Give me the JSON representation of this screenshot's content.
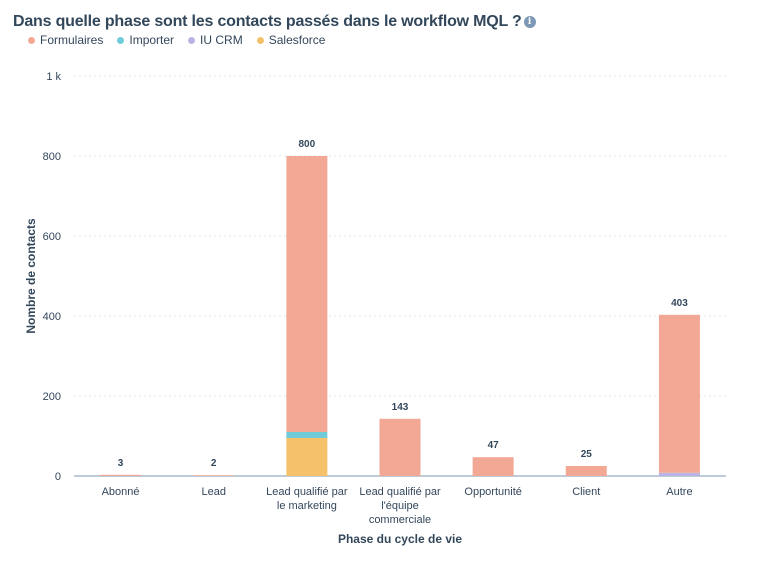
{
  "title": "Dans quelle phase sont les contacts passés dans le workflow MQL ?",
  "info_icon": "info-icon",
  "chart_data": {
    "type": "bar",
    "stacked": true,
    "categories": [
      [
        "Abonné"
      ],
      [
        "Lead"
      ],
      [
        "Lead qualifié par",
        "le marketing"
      ],
      [
        "Lead qualifié par",
        "l'équipe",
        "commerciale"
      ],
      [
        "Opportunité"
      ],
      [
        "Client"
      ],
      [
        "Autre"
      ]
    ],
    "series": [
      {
        "name": "Salesforce",
        "color": "#f5c26b",
        "values": [
          0,
          0,
          95,
          0,
          0,
          0,
          0
        ]
      },
      {
        "name": "IU CRM",
        "color": "#b9b4e4",
        "values": [
          0,
          0,
          0,
          0,
          0,
          0,
          8
        ]
      },
      {
        "name": "Importer",
        "color": "#6fcbd8",
        "values": [
          0,
          0,
          15,
          0,
          0,
          0,
          0
        ]
      },
      {
        "name": "Formulaires",
        "color": "#f2a894",
        "values": [
          3,
          2,
          690,
          143,
          47,
          25,
          395
        ]
      }
    ],
    "totals": [
      "3",
      "2",
      "800",
      "143",
      "47",
      "25",
      "403"
    ],
    "legend_order": [
      "Formulaires",
      "Importer",
      "IU CRM",
      "Salesforce"
    ],
    "legend_colors": {
      "Formulaires": "#f2a894",
      "Importer": "#6fcbd8",
      "IU CRM": "#b9b4e4",
      "Salesforce": "#f5c26b"
    },
    "xlabel": "Phase du cycle de vie",
    "ylabel": "Nombre de contacts",
    "ylim": [
      0,
      1000
    ],
    "yticks": [
      0,
      200,
      400,
      600,
      800,
      1000
    ],
    "ytick_labels": [
      "0",
      "200",
      "400",
      "600",
      "800",
      "1 k"
    ],
    "grid": true,
    "legend_position": "top-left"
  }
}
